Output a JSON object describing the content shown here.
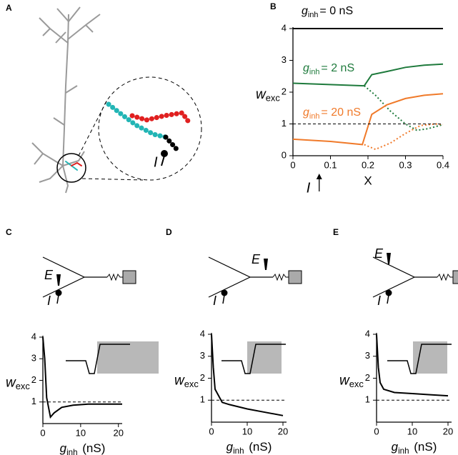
{
  "panel_labels": [
    "A",
    "B",
    "C",
    "D",
    "E"
  ],
  "panel_a_label": "I",
  "chart_data": [
    {
      "type": "line",
      "panel": "B",
      "xlim": [
        0,
        0.4
      ],
      "xticks": [
        0,
        0.1,
        0.2,
        0.3,
        0.4
      ],
      "ylim": [
        0,
        4
      ],
      "yticks": [
        0,
        1,
        2,
        3,
        4
      ],
      "xlabel": "X",
      "ylabel": {
        "main": "w",
        "sub": "exc"
      },
      "marker": {
        "label": "I",
        "x": 0.07
      },
      "series": [
        {
          "name": {
            "main": "g",
            "sub": "inh",
            "rest": "= 0 nS"
          },
          "color": "#000000",
          "style": "solid",
          "x": [
            0,
            0.4
          ],
          "values": [
            4,
            4
          ]
        },
        {
          "name": {
            "main": "g",
            "sub": "inh",
            "rest": "= 2 nS"
          },
          "color": "#1e7a3c",
          "style": "solid",
          "x": [
            0,
            0.19,
            0.21,
            0.25,
            0.3,
            0.35,
            0.4
          ],
          "values": [
            2.28,
            2.2,
            2.55,
            2.65,
            2.78,
            2.85,
            2.88
          ]
        },
        {
          "color": "#1e7a3c",
          "style": "dotted",
          "x": [
            0.19,
            0.22,
            0.26,
            0.3,
            0.33,
            0.36,
            0.4
          ],
          "values": [
            2.2,
            1.9,
            1.4,
            1.0,
            0.8,
            0.85,
            0.98
          ]
        },
        {
          "name": {
            "main": "g",
            "sub": "inh",
            "rest": "= 20 nS"
          },
          "color": "#f07a2a",
          "style": "solid",
          "x": [
            0,
            0.1,
            0.185,
            0.21,
            0.25,
            0.3,
            0.35,
            0.4
          ],
          "values": [
            0.52,
            0.45,
            0.35,
            1.3,
            1.6,
            1.8,
            1.9,
            1.95
          ]
        },
        {
          "color": "#f07a2a",
          "style": "dotted",
          "x": [
            0.19,
            0.22,
            0.26,
            0.3,
            0.34,
            0.38,
            0.4
          ],
          "values": [
            0.35,
            0.2,
            0.4,
            0.7,
            0.95,
            1.0,
            0.98
          ]
        },
        {
          "color": "#000000",
          "style": "dashed",
          "x": [
            0,
            0.4
          ],
          "values": [
            1,
            1
          ]
        }
      ]
    },
    {
      "type": "line",
      "panel": "C",
      "diagram": {
        "E": "E",
        "I": "I"
      },
      "xlim": [
        0,
        21
      ],
      "xticks": [
        0,
        10,
        20
      ],
      "ylim": [
        0,
        4
      ],
      "yticks": [
        1,
        2,
        3,
        4
      ],
      "xlabel": {
        "main": "g",
        "sub": "inh",
        "rest": " (nS)"
      },
      "ylabel": {
        "main": "w",
        "sub": "exc"
      },
      "series": [
        {
          "color": "#000000",
          "style": "solid",
          "x": [
            0,
            0.5,
            1,
            2,
            3,
            5,
            8,
            12,
            21
          ],
          "values": [
            4,
            3,
            1.2,
            0.3,
            0.5,
            0.75,
            0.85,
            0.9,
            0.9
          ]
        },
        {
          "color": "#000000",
          "style": "dashed",
          "x": [
            0,
            21
          ],
          "values": [
            1,
            1
          ]
        }
      ]
    },
    {
      "type": "line",
      "panel": "D",
      "diagram": {
        "E": "E",
        "I": "I"
      },
      "xlim": [
        0,
        21
      ],
      "xticks": [
        0,
        10,
        20
      ],
      "ylim": [
        0,
        4
      ],
      "yticks": [
        1,
        2,
        3,
        4
      ],
      "xlabel": {
        "main": "g",
        "sub": "inh",
        "rest": " (nS)"
      },
      "ylabel": {
        "main": "w",
        "sub": "exc"
      },
      "series": [
        {
          "color": "#000000",
          "style": "solid",
          "x": [
            0,
            0.5,
            1,
            3,
            5,
            10,
            15,
            20
          ],
          "values": [
            4,
            2.5,
            1.5,
            0.9,
            0.8,
            0.6,
            0.45,
            0.3
          ]
        },
        {
          "color": "#000000",
          "style": "dashed",
          "x": [
            0,
            21
          ],
          "values": [
            1,
            1
          ]
        }
      ]
    },
    {
      "type": "line",
      "panel": "E",
      "diagram": {
        "E": "E",
        "I": "I"
      },
      "xlim": [
        0,
        21
      ],
      "xticks": [
        0,
        10,
        20
      ],
      "ylim": [
        0,
        4
      ],
      "yticks": [
        1,
        2,
        3,
        4
      ],
      "xlabel": {
        "main": "g",
        "sub": "inh",
        "rest": " (nS)"
      },
      "ylabel": {
        "main": "w",
        "sub": "exc"
      },
      "series": [
        {
          "color": "#000000",
          "style": "solid",
          "x": [
            0,
            0.5,
            1,
            2,
            5,
            10,
            15,
            20
          ],
          "values": [
            4,
            2.5,
            1.8,
            1.5,
            1.35,
            1.3,
            1.25,
            1.2
          ]
        },
        {
          "color": "#000000",
          "style": "dashed",
          "x": [
            0,
            21
          ],
          "values": [
            1,
            1
          ]
        }
      ]
    }
  ]
}
